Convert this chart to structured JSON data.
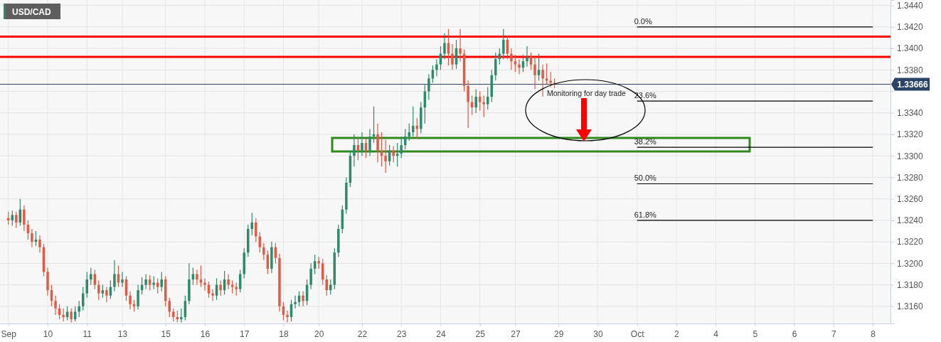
{
  "chart_data": {
    "type": "candlestick",
    "title": "USD/CAD",
    "ylim": [
      1.3144,
      1.3445
    ],
    "categories": [
      "Sep",
      null,
      null,
      null,
      null,
      null,
      null,
      null,
      null,
      null,
      "10",
      null,
      null,
      null,
      null,
      null,
      null,
      null,
      null,
      null,
      "11",
      null,
      null,
      null,
      null,
      null,
      null,
      null,
      null,
      "13",
      null,
      null,
      null,
      null,
      null,
      null,
      null,
      null,
      null,
      null,
      "15",
      null,
      null,
      null,
      null,
      null,
      null,
      null,
      null,
      null,
      "16",
      null,
      null,
      null,
      null,
      null,
      null,
      null,
      null,
      null,
      "17",
      null,
      null,
      null,
      null,
      null,
      null,
      null,
      null,
      null,
      "18",
      null,
      null,
      null,
      null,
      null,
      null,
      null,
      null,
      "20",
      null,
      null,
      null,
      null,
      null,
      null,
      null,
      null,
      null,
      null,
      "22",
      null,
      null,
      null,
      null,
      null,
      null,
      null,
      null,
      null,
      "23",
      null,
      null,
      null,
      null,
      null,
      null,
      null,
      null,
      null,
      "24",
      null,
      null,
      null,
      null,
      null,
      null,
      null,
      null,
      null,
      "25",
      null,
      null,
      null,
      null,
      null,
      null,
      null,
      null,
      "27",
      null,
      null,
      null,
      null,
      null,
      null,
      null,
      null,
      null,
      null,
      "29",
      null,
      null,
      null,
      null,
      null,
      null,
      null,
      null,
      null,
      "30",
      null,
      null,
      null,
      null,
      null,
      null,
      null,
      null,
      null,
      "Oct",
      null,
      null,
      null,
      null,
      null,
      null,
      null,
      null,
      null,
      "2",
      null,
      null,
      null,
      null,
      null,
      null,
      null,
      null,
      null,
      "4",
      null,
      null,
      null,
      null,
      null,
      null,
      null,
      null,
      null,
      "5",
      null,
      null,
      null,
      null,
      null,
      null,
      null,
      null,
      null,
      "6",
      null,
      null,
      null,
      null,
      null,
      null,
      null,
      null,
      null,
      "7",
      null,
      null,
      null,
      null,
      null,
      null,
      null,
      null,
      null,
      "8",
      null,
      null,
      null,
      null
    ],
    "yticks": [
      {
        "value": 1.316,
        "label": "1.3160"
      },
      {
        "value": 1.318,
        "label": "1.3180"
      },
      {
        "value": 1.32,
        "label": "1.3200"
      },
      {
        "value": 1.322,
        "label": "1.3220"
      },
      {
        "value": 1.324,
        "label": "1.3240"
      },
      {
        "value": 1.326,
        "label": "1.3260"
      },
      {
        "value": 1.328,
        "label": "1.3280"
      },
      {
        "value": 1.33,
        "label": "1.3300"
      },
      {
        "value": 1.332,
        "label": "1.3320"
      },
      {
        "value": 1.334,
        "label": "1.3340"
      },
      {
        "value": 1.336,
        "label": null
      },
      {
        "value": 1.338,
        "label": "1.3380"
      },
      {
        "value": 1.34,
        "label": "1.3400"
      },
      {
        "value": 1.342,
        "label": "1.3420"
      },
      {
        "value": 1.344,
        "label": "1.3440"
      }
    ],
    "grid": true,
    "ohlc": [
      [
        1.3242,
        1.3248,
        1.3236,
        1.324
      ],
      [
        1.324,
        1.3249,
        1.3235,
        1.3245
      ],
      [
        1.3245,
        1.3248,
        1.3233,
        1.3238
      ],
      [
        1.3238,
        1.326,
        1.3235,
        1.325
      ],
      [
        1.325,
        1.3254,
        1.323,
        1.3236
      ],
      [
        1.3236,
        1.324,
        1.3222,
        1.3228
      ],
      [
        1.3228,
        1.3232,
        1.3215,
        1.322
      ],
      [
        1.322,
        1.323,
        1.3216,
        1.3222
      ],
      [
        1.3222,
        1.3226,
        1.321,
        1.3215
      ],
      [
        1.3215,
        1.3218,
        1.3188,
        1.3192
      ],
      [
        1.3192,
        1.3196,
        1.317,
        1.3175
      ],
      [
        1.3175,
        1.318,
        1.316,
        1.3165
      ],
      [
        1.3165,
        1.317,
        1.3152,
        1.3158
      ],
      [
        1.3158,
        1.3162,
        1.3148,
        1.3152
      ],
      [
        1.3152,
        1.3158,
        1.3146,
        1.315
      ],
      [
        1.315,
        1.316,
        1.3147,
        1.3155
      ],
      [
        1.3155,
        1.3158,
        1.3145,
        1.3148
      ],
      [
        1.3148,
        1.316,
        1.3146,
        1.3155
      ],
      [
        1.3155,
        1.3165,
        1.315,
        1.316
      ],
      [
        1.316,
        1.3178,
        1.3156,
        1.3172
      ],
      [
        1.3172,
        1.3192,
        1.3168,
        1.3185
      ],
      [
        1.3185,
        1.3196,
        1.318,
        1.319
      ],
      [
        1.319,
        1.3194,
        1.3176,
        1.318
      ],
      [
        1.318,
        1.3184,
        1.3166,
        1.3172
      ],
      [
        1.3172,
        1.318,
        1.3168,
        1.3175
      ],
      [
        1.3175,
        1.3178,
        1.3164,
        1.317
      ],
      [
        1.317,
        1.3184,
        1.3167,
        1.3178
      ],
      [
        1.3178,
        1.3203,
        1.3174,
        1.319
      ],
      [
        1.319,
        1.3198,
        1.3178,
        1.3182
      ],
      [
        1.3182,
        1.3192,
        1.3178,
        1.3185
      ],
      [
        1.3185,
        1.3188,
        1.3165,
        1.317
      ],
      [
        1.317,
        1.3174,
        1.3157,
        1.3162
      ],
      [
        1.3162,
        1.3166,
        1.3155,
        1.316
      ],
      [
        1.316,
        1.318,
        1.3157,
        1.3175
      ],
      [
        1.3175,
        1.3187,
        1.3171,
        1.318
      ],
      [
        1.318,
        1.319,
        1.3176,
        1.3185
      ],
      [
        1.3185,
        1.3189,
        1.3175,
        1.318
      ],
      [
        1.318,
        1.3188,
        1.3176,
        1.3182
      ],
      [
        1.3182,
        1.3186,
        1.3172,
        1.3178
      ],
      [
        1.3178,
        1.3192,
        1.3174,
        1.3185
      ],
      [
        1.3185,
        1.3188,
        1.316,
        1.3165
      ],
      [
        1.3165,
        1.3168,
        1.315,
        1.3155
      ],
      [
        1.3155,
        1.3158,
        1.3146,
        1.315
      ],
      [
        1.315,
        1.3156,
        1.3145,
        1.3148
      ],
      [
        1.3148,
        1.3158,
        1.3145,
        1.315
      ],
      [
        1.315,
        1.317,
        1.3147,
        1.3165
      ],
      [
        1.3165,
        1.32,
        1.3162,
        1.3185
      ],
      [
        1.3185,
        1.3196,
        1.318,
        1.319
      ],
      [
        1.319,
        1.3194,
        1.318,
        1.3185
      ],
      [
        1.3185,
        1.3198,
        1.3178,
        1.3182
      ],
      [
        1.3182,
        1.3186,
        1.3175,
        1.318
      ],
      [
        1.318,
        1.3183,
        1.3168,
        1.3172
      ],
      [
        1.3172,
        1.3176,
        1.3165,
        1.317
      ],
      [
        1.317,
        1.3186,
        1.3166,
        1.318
      ],
      [
        1.318,
        1.3184,
        1.317,
        1.3175
      ],
      [
        1.3175,
        1.3193,
        1.3171,
        1.3185
      ],
      [
        1.3185,
        1.319,
        1.3176,
        1.318
      ],
      [
        1.318,
        1.3184,
        1.3172,
        1.3178
      ],
      [
        1.3178,
        1.3182,
        1.317,
        1.3176
      ],
      [
        1.3176,
        1.3194,
        1.3173,
        1.319
      ],
      [
        1.319,
        1.3214,
        1.3186,
        1.321
      ],
      [
        1.321,
        1.3236,
        1.3206,
        1.3232
      ],
      [
        1.3232,
        1.3247,
        1.3226,
        1.3238
      ],
      [
        1.3238,
        1.3242,
        1.322,
        1.3225
      ],
      [
        1.3225,
        1.3229,
        1.321,
        1.3215
      ],
      [
        1.3215,
        1.3219,
        1.3203,
        1.3208
      ],
      [
        1.3208,
        1.3212,
        1.319,
        1.3195
      ],
      [
        1.3195,
        1.322,
        1.3191,
        1.3215
      ],
      [
        1.3215,
        1.3219,
        1.32,
        1.3205
      ],
      [
        1.3205,
        1.3209,
        1.3155,
        1.316
      ],
      [
        1.316,
        1.3164,
        1.3147,
        1.3152
      ],
      [
        1.3152,
        1.3156,
        1.3145,
        1.315
      ],
      [
        1.315,
        1.3166,
        1.3146,
        1.3162
      ],
      [
        1.3162,
        1.317,
        1.3158,
        1.3164
      ],
      [
        1.3164,
        1.3174,
        1.316,
        1.317
      ],
      [
        1.317,
        1.3174,
        1.316,
        1.3165
      ],
      [
        1.3165,
        1.3185,
        1.3161,
        1.318
      ],
      [
        1.318,
        1.32,
        1.3176,
        1.3195
      ],
      [
        1.3195,
        1.3208,
        1.319,
        1.3202
      ],
      [
        1.3202,
        1.3206,
        1.3195,
        1.32
      ],
      [
        1.32,
        1.3204,
        1.318,
        1.3185
      ],
      [
        1.3185,
        1.3189,
        1.317,
        1.3175
      ],
      [
        1.3175,
        1.3185,
        1.3171,
        1.318
      ],
      [
        1.318,
        1.3214,
        1.3176,
        1.321
      ],
      [
        1.321,
        1.3236,
        1.3206,
        1.3232
      ],
      [
        1.3232,
        1.3254,
        1.3228,
        1.325
      ],
      [
        1.325,
        1.328,
        1.3246,
        1.3275
      ],
      [
        1.3275,
        1.3305,
        1.3271,
        1.33
      ],
      [
        1.33,
        1.332,
        1.329,
        1.331
      ],
      [
        1.331,
        1.3318,
        1.3296,
        1.3305
      ],
      [
        1.3305,
        1.3322,
        1.33,
        1.3312
      ],
      [
        1.3312,
        1.3316,
        1.3298,
        1.3305
      ],
      [
        1.3305,
        1.3325,
        1.33,
        1.3318
      ],
      [
        1.3318,
        1.3346,
        1.3312,
        1.332
      ],
      [
        1.332,
        1.333,
        1.3294,
        1.3305
      ],
      [
        1.3305,
        1.3322,
        1.329,
        1.33
      ],
      [
        1.33,
        1.3315,
        1.3284,
        1.3295
      ],
      [
        1.3295,
        1.331,
        1.3291,
        1.3305
      ],
      [
        1.3305,
        1.3309,
        1.3294,
        1.33
      ],
      [
        1.33,
        1.3312,
        1.329,
        1.3302
      ],
      [
        1.3302,
        1.3318,
        1.3298,
        1.331
      ],
      [
        1.331,
        1.3325,
        1.3306,
        1.3318
      ],
      [
        1.3318,
        1.333,
        1.3314,
        1.3322
      ],
      [
        1.3322,
        1.3346,
        1.3318,
        1.3328
      ],
      [
        1.3328,
        1.3335,
        1.3316,
        1.3325
      ],
      [
        1.3325,
        1.335,
        1.3321,
        1.3345
      ],
      [
        1.3345,
        1.3366,
        1.333,
        1.336
      ],
      [
        1.336,
        1.3376,
        1.3352,
        1.3372
      ],
      [
        1.3372,
        1.3384,
        1.3368,
        1.338
      ],
      [
        1.338,
        1.339,
        1.3374,
        1.3385
      ],
      [
        1.3385,
        1.3402,
        1.338,
        1.3395
      ],
      [
        1.3395,
        1.3414,
        1.339,
        1.3405
      ],
      [
        1.3405,
        1.3418,
        1.3384,
        1.3395
      ],
      [
        1.3395,
        1.3404,
        1.338,
        1.3385
      ],
      [
        1.3385,
        1.3408,
        1.3381,
        1.34
      ],
      [
        1.34,
        1.3418,
        1.3388,
        1.3395
      ],
      [
        1.3395,
        1.3399,
        1.336,
        1.3365
      ],
      [
        1.3365,
        1.337,
        1.3326,
        1.335
      ],
      [
        1.335,
        1.3356,
        1.3338,
        1.3345
      ],
      [
        1.3345,
        1.3362,
        1.334,
        1.3355
      ],
      [
        1.3355,
        1.336,
        1.3342,
        1.335
      ],
      [
        1.335,
        1.3356,
        1.3336,
        1.3348
      ],
      [
        1.3348,
        1.3364,
        1.3343,
        1.3355
      ],
      [
        1.3355,
        1.338,
        1.335,
        1.3375
      ],
      [
        1.3375,
        1.3396,
        1.337,
        1.339
      ],
      [
        1.339,
        1.34,
        1.3385,
        1.3395
      ],
      [
        1.3395,
        1.3418,
        1.339,
        1.3408
      ],
      [
        1.3408,
        1.3412,
        1.339,
        1.3395
      ],
      [
        1.3395,
        1.34,
        1.338,
        1.3388
      ],
      [
        1.3388,
        1.3394,
        1.3378,
        1.3385
      ],
      [
        1.3385,
        1.339,
        1.3376,
        1.3382
      ],
      [
        1.3382,
        1.3394,
        1.3378,
        1.3388
      ],
      [
        1.3388,
        1.3402,
        1.3383,
        1.3392
      ],
      [
        1.3392,
        1.3396,
        1.338,
        1.3385
      ],
      [
        1.3385,
        1.3392,
        1.3362,
        1.3375
      ],
      [
        1.3375,
        1.3395,
        1.337,
        1.338
      ],
      [
        1.338,
        1.3385,
        1.3355,
        1.3372
      ],
      [
        1.3372,
        1.3386,
        1.3366,
        1.337
      ],
      [
        1.337,
        1.3378,
        1.3364,
        1.3368
      ],
      [
        1.3368,
        1.3372,
        1.3363,
        1.3367
      ],
      null,
      null,
      null,
      null,
      null,
      null,
      null,
      null,
      null,
      null,
      null,
      null,
      null,
      null,
      null,
      null,
      null,
      null,
      null,
      null,
      null,
      null,
      null,
      null,
      null,
      null,
      null,
      null,
      null,
      null,
      null,
      null,
      null,
      null,
      null,
      null,
      null,
      null,
      null,
      null,
      null,
      null,
      null,
      null,
      null,
      null,
      null,
      null,
      null,
      null,
      null,
      null,
      null,
      null,
      null,
      null,
      null,
      null,
      null,
      null,
      null,
      null,
      null,
      null,
      null,
      null,
      null,
      null,
      null,
      null,
      null,
      null,
      null,
      null,
      null,
      null,
      null,
      null,
      null,
      null,
      null,
      null,
      null,
      null,
      null
    ],
    "colors": [
      "#e05a45",
      "#2e8a6c",
      "#e05a45",
      "#2e8a6c",
      "#e05a45",
      "#e05a45",
      "#e05a45",
      "#2e8a6c",
      "#e05a45",
      "#e05a45",
      "#e05a45",
      "#e05a45",
      "#e05a45",
      "#e05a45",
      "#e05a45",
      "#2e8a6c",
      "#e05a45",
      "#2e8a6c",
      "#2e8a6c",
      "#2e8a6c",
      "#2e8a6c",
      "#2e8a6c",
      "#e05a45",
      "#e05a45",
      "#2e8a6c",
      "#e05a45",
      "#2e8a6c",
      "#2e8a6c",
      "#e05a45",
      "#2e8a6c",
      "#e05a45",
      "#e05a45",
      "#e05a45",
      "#2e8a6c",
      "#2e8a6c",
      "#2e8a6c",
      "#e05a45",
      "#2e8a6c",
      "#e05a45",
      "#2e8a6c",
      "#e05a45",
      "#e05a45",
      "#e05a45",
      "#e05a45",
      "#2e8a6c",
      "#2e8a6c",
      "#2e8a6c",
      "#2e8a6c",
      "#e05a45",
      "#e05a45",
      "#e05a45",
      "#e05a45",
      "#e05a45",
      "#2e8a6c",
      "#e05a45",
      "#2e8a6c",
      "#e05a45",
      "#e05a45",
      "#e05a45",
      "#2e8a6c",
      "#2e8a6c",
      "#2e8a6c",
      "#2e8a6c",
      "#e05a45",
      "#e05a45",
      "#e05a45",
      "#e05a45",
      "#2e8a6c",
      "#e05a45",
      "#e05a45",
      "#e05a45",
      "#e05a45",
      "#2e8a6c",
      "#2e8a6c",
      "#2e8a6c",
      "#e05a45",
      "#2e8a6c",
      "#2e8a6c",
      "#2e8a6c",
      "#e05a45",
      "#e05a45",
      "#e05a45",
      "#2e8a6c",
      "#2e8a6c",
      "#2e8a6c",
      "#2e8a6c",
      "#2e8a6c",
      "#2e8a6c",
      "#2e8a6c",
      "#e05a45",
      "#2e8a6c",
      "#e05a45",
      "#2e8a6c",
      "#2e8a6c",
      "#e05a45",
      "#e05a45",
      "#e05a45",
      "#2e8a6c",
      "#e05a45",
      "#2e8a6c",
      "#2e8a6c",
      "#2e8a6c",
      "#2e8a6c",
      "#2e8a6c",
      "#e05a45",
      "#2e8a6c",
      "#2e8a6c",
      "#2e8a6c",
      "#2e8a6c",
      "#2e8a6c",
      "#2e8a6c",
      "#2e8a6c",
      "#e05a45",
      "#e05a45",
      "#2e8a6c",
      "#e05a45",
      "#e05a45",
      "#e05a45",
      "#e05a45",
      "#2e8a6c",
      "#e05a45",
      "#e05a45",
      "#2e8a6c",
      "#2e8a6c",
      "#2e8a6c",
      "#2e8a6c",
      "#2e8a6c",
      "#e05a45",
      "#e05a45",
      "#e05a45",
      "#e05a45",
      "#2e8a6c",
      "#2e8a6c",
      "#e05a45",
      "#e05a45",
      "#2e8a6c",
      "#e05a45",
      "#e05a45",
      "#e05a45",
      "#e05a45",
      null,
      null,
      null,
      null,
      null,
      null,
      null,
      null,
      null,
      null,
      null,
      null,
      null,
      null,
      null,
      null,
      null,
      null,
      null,
      null,
      null,
      null,
      null,
      null,
      null,
      null,
      null,
      null,
      null,
      null,
      null,
      null,
      null,
      null,
      null,
      null,
      null,
      null,
      null,
      null,
      null,
      null,
      null,
      null,
      null,
      null,
      null,
      null,
      null,
      null,
      null,
      null,
      null,
      null,
      null,
      null,
      null,
      null,
      null,
      null,
      null,
      null,
      null,
      null,
      null,
      null,
      null,
      null,
      null,
      null,
      null,
      null,
      null,
      null,
      null,
      null,
      null,
      null,
      null,
      null,
      null,
      null,
      null,
      null,
      null
    ],
    "series": [
      {
        "type": "line",
        "name": "0.0%",
        "color": "#000000",
        "x": [
          "Oct",
          "8"
        ],
        "values": [
          1.342,
          1.342
        ]
      },
      {
        "type": "line",
        "name": "23.6%",
        "color": "#000000",
        "x": [
          "Oct",
          "8"
        ],
        "values": [
          1.3351,
          1.3351
        ]
      },
      {
        "type": "line",
        "name": "38.2%",
        "color": "#000000",
        "x": [
          "Oct",
          "8"
        ],
        "values": [
          1.3308,
          1.3308
        ]
      },
      {
        "type": "line",
        "name": "50.0%",
        "color": "#000000",
        "x": [
          "Oct",
          "8"
        ],
        "values": [
          1.3274,
          1.3274
        ]
      },
      {
        "type": "line",
        "name": "61.8%",
        "color": "#000000",
        "x": [
          "Oct",
          "8"
        ],
        "values": [
          1.324,
          1.324
        ]
      }
    ],
    "ref_lines": [
      {
        "axis": "y",
        "value": 1.3411,
        "color": "#ff0000"
      },
      {
        "axis": "y",
        "value": 1.3392,
        "color": "#ff0000"
      },
      {
        "axis": "y",
        "value": 1.33666,
        "label": "1.33666",
        "color": "#2b4466"
      }
    ],
    "annotations": [
      "Monitoring for day trade"
    ]
  }
}
